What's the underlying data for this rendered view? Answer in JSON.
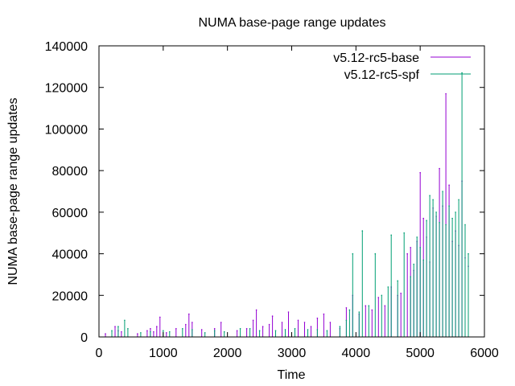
{
  "chart_data": {
    "type": "line",
    "title": "NUMA base-page range updates",
    "xlabel": "Time",
    "ylabel": "NUMA base-page range updates",
    "xlim": [
      0,
      6000
    ],
    "ylim": [
      0,
      140000
    ],
    "x_ticks": [
      0,
      1000,
      2000,
      3000,
      4000,
      5000,
      6000
    ],
    "y_ticks": [
      0,
      20000,
      40000,
      60000,
      80000,
      100000,
      120000,
      140000
    ],
    "grid": false,
    "legend_position": "top-right",
    "series": [
      {
        "name": "v5.12-rc5-base",
        "color": "#9400d3",
        "points": [
          [
            100,
            1500
          ],
          [
            250,
            5000
          ],
          [
            300,
            3000
          ],
          [
            350,
            2500
          ],
          [
            600,
            1500
          ],
          [
            750,
            3000
          ],
          [
            800,
            4000
          ],
          [
            850,
            2500
          ],
          [
            900,
            5000
          ],
          [
            950,
            9500
          ],
          [
            1050,
            2000
          ],
          [
            1200,
            4000
          ],
          [
            1350,
            6000
          ],
          [
            1400,
            11000
          ],
          [
            1450,
            7000
          ],
          [
            1600,
            3500
          ],
          [
            1800,
            4000
          ],
          [
            1900,
            7000
          ],
          [
            2150,
            3000
          ],
          [
            2300,
            4000
          ],
          [
            2400,
            8000
          ],
          [
            2450,
            13000
          ],
          [
            2550,
            5000
          ],
          [
            2650,
            6000
          ],
          [
            2700,
            10000
          ],
          [
            2850,
            7000
          ],
          [
            2950,
            12000
          ],
          [
            3100,
            8000
          ],
          [
            3200,
            7000
          ],
          [
            3300,
            5000
          ],
          [
            3400,
            9000
          ],
          [
            3500,
            11000
          ],
          [
            3600,
            7000
          ],
          [
            3750,
            4000
          ],
          [
            3850,
            14000
          ],
          [
            3950,
            20000
          ],
          [
            4050,
            11000
          ],
          [
            4150,
            15000
          ],
          [
            4250,
            13000
          ],
          [
            4350,
            19000
          ],
          [
            4450,
            15000
          ],
          [
            4550,
            24000
          ],
          [
            4650,
            20000
          ],
          [
            4700,
            21000
          ],
          [
            4800,
            40000
          ],
          [
            4850,
            43000
          ],
          [
            4900,
            32000
          ],
          [
            4950,
            46000
          ],
          [
            5000,
            79000
          ],
          [
            5050,
            57000
          ],
          [
            5100,
            48000
          ],
          [
            5150,
            36000
          ],
          [
            5200,
            62000
          ],
          [
            5250,
            58000
          ],
          [
            5300,
            81000
          ],
          [
            5350,
            63000
          ],
          [
            5400,
            117000
          ],
          [
            5450,
            73000
          ],
          [
            5500,
            46000
          ],
          [
            5550,
            51000
          ],
          [
            5600,
            44000
          ],
          [
            5650,
            75000
          ],
          [
            5700,
            38000
          ],
          [
            5750,
            34000
          ]
        ]
      },
      {
        "name": "v5.12-rc5-spf",
        "color": "#009e73",
        "points": [
          [
            200,
            3000
          ],
          [
            300,
            5000
          ],
          [
            400,
            8000
          ],
          [
            450,
            4000
          ],
          [
            650,
            2000
          ],
          [
            800,
            2500
          ],
          [
            1000,
            3000
          ],
          [
            1100,
            2500
          ],
          [
            1300,
            4000
          ],
          [
            1450,
            3500
          ],
          [
            1650,
            2000
          ],
          [
            1800,
            3000
          ],
          [
            1950,
            2500
          ],
          [
            2200,
            4000
          ],
          [
            2350,
            4000
          ],
          [
            2500,
            3000
          ],
          [
            2750,
            3000
          ],
          [
            2900,
            3500
          ],
          [
            3050,
            4000
          ],
          [
            3250,
            3500
          ],
          [
            3400,
            3500
          ],
          [
            3550,
            3000
          ],
          [
            3750,
            5000
          ],
          [
            3850,
            8000
          ],
          [
            3900,
            13000
          ],
          [
            3950,
            40000
          ],
          [
            4050,
            12000
          ],
          [
            4100,
            51000
          ],
          [
            4200,
            15000
          ],
          [
            4300,
            40000
          ],
          [
            4400,
            20000
          ],
          [
            4500,
            24000
          ],
          [
            4550,
            49000
          ],
          [
            4650,
            27000
          ],
          [
            4750,
            50000
          ],
          [
            4850,
            29000
          ],
          [
            4900,
            35000
          ],
          [
            4950,
            48000
          ],
          [
            5000,
            43000
          ],
          [
            5050,
            37000
          ],
          [
            5100,
            56000
          ],
          [
            5150,
            68000
          ],
          [
            5200,
            66000
          ],
          [
            5250,
            60000
          ],
          [
            5300,
            55000
          ],
          [
            5350,
            70000
          ],
          [
            5400,
            54000
          ],
          [
            5450,
            63000
          ],
          [
            5500,
            57000
          ],
          [
            5550,
            60000
          ],
          [
            5600,
            66000
          ],
          [
            5650,
            127000
          ],
          [
            5700,
            54000
          ],
          [
            5750,
            40000
          ]
        ]
      }
    ]
  }
}
